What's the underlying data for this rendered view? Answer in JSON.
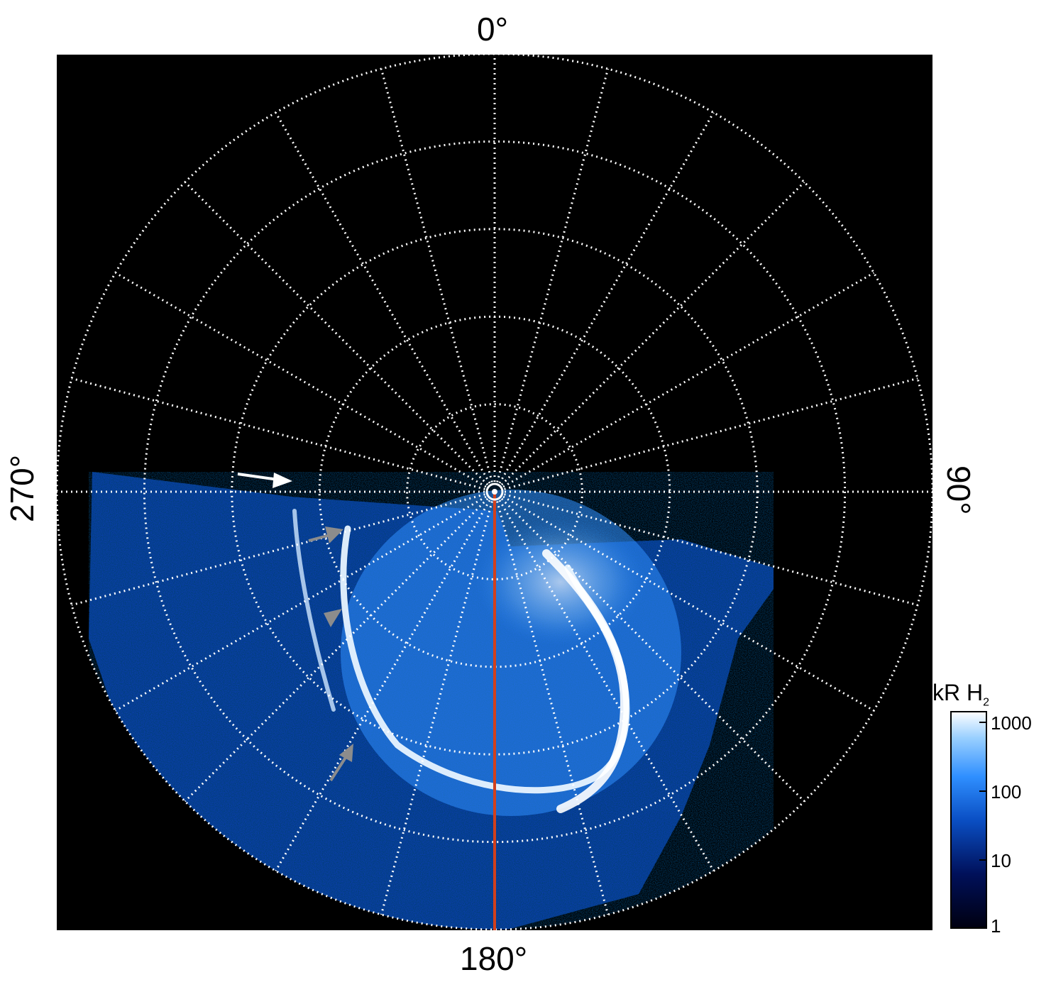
{
  "figure": {
    "angle_labels": {
      "top": "0°",
      "right": "90°",
      "bottom": "180°",
      "left": "270°"
    },
    "colorbar": {
      "title_main": "kR H",
      "title_sub": "2",
      "ticks": [
        "1000",
        "100",
        "10",
        "1"
      ],
      "scale": "log",
      "range": [
        1,
        1000
      ],
      "colors": [
        "#000010",
        "#00105a",
        "#0a4fc4",
        "#2f8fff",
        "#9ad0ff",
        "#ffffff"
      ]
    },
    "colors": {
      "background": "#000000",
      "grid": "#ffffff",
      "meridian_line": "#d2401c",
      "arrow_white": "#ffffff",
      "arrow_gray": "#8c8c8c"
    },
    "grid": {
      "style": "dotted",
      "rings": 5,
      "meridian_spacing_deg": 15
    }
  }
}
